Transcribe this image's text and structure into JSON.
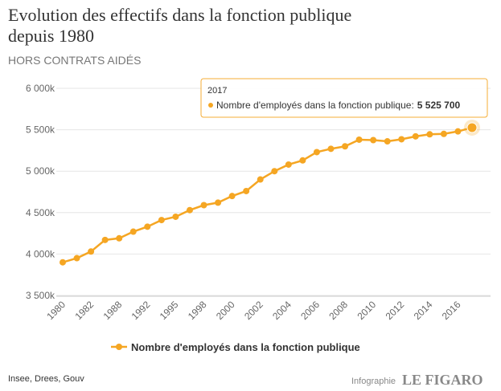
{
  "chart_data": {
    "type": "line",
    "title": "Evolution des effectifs dans la fonction publique",
    "title_line2": "depuis 1980",
    "subtitle": "HORS CONTRATS AIDÉS",
    "categories": [
      "1980",
      null,
      "1982",
      null,
      "1988",
      null,
      "1992",
      null,
      "1995",
      null,
      "1998",
      null,
      "2000",
      null,
      "2002",
      null,
      "2004",
      null,
      "2006",
      null,
      "2008",
      null,
      "2010",
      null,
      "2012",
      null,
      "2014",
      null,
      "2016",
      null
    ],
    "series": [
      {
        "name": "Nombre d'employés dans la fonction publique",
        "color": "#f5a623",
        "values": [
          3900,
          3950,
          4030,
          4170,
          4190,
          4270,
          4330,
          4410,
          4450,
          4530,
          4590,
          4620,
          4700,
          4760,
          4900,
          5000,
          5080,
          5130,
          5230,
          5270,
          5300,
          5380,
          5375,
          5360,
          5385,
          5420,
          5445,
          5450,
          5480,
          5525.7
        ],
        "value_labels": [
          null,
          null,
          null,
          null,
          null,
          null,
          null,
          null,
          null,
          null,
          null,
          null,
          null,
          null,
          null,
          null,
          null,
          null,
          null,
          null,
          null,
          null,
          null,
          null,
          null,
          null,
          null,
          null,
          null,
          "5 525 700"
        ]
      }
    ],
    "tooltip": {
      "title": "2017",
      "text": "Nombre d'employés dans la fonction publique:"
    },
    "ylim": [
      3500,
      6000
    ],
    "yticks": [
      {
        "value": 3500,
        "label": "3 500k"
      },
      {
        "value": 4000,
        "label": "4 000k"
      },
      {
        "value": 4500,
        "label": "4 500k"
      },
      {
        "value": 5000,
        "label": "5 000k"
      },
      {
        "value": 5500,
        "label": "5 500k"
      },
      {
        "value": 6000,
        "label": "6 000k"
      }
    ],
    "grid": true,
    "legend": "bottom",
    "source": "Insee, Drees, Gouv",
    "credit": "Infographie",
    "brand": "LE FIGARO"
  }
}
